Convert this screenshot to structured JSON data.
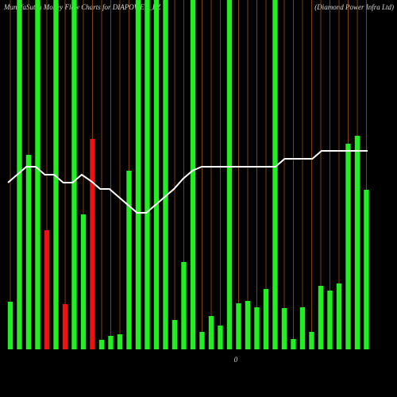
{
  "chart_data": {
    "type": "bar",
    "title": "MunafaSutra Money Flow Charts for DIAPOWER_BZ",
    "subtitle": "(Diamond Power Infra Ltd)",
    "xlabel": "0",
    "ylim": [
      0,
      440
    ],
    "categories": [
      null,
      null,
      null,
      null,
      null,
      null,
      null,
      null,
      null,
      null,
      null,
      null,
      null,
      null,
      null,
      null,
      null,
      null,
      null,
      null,
      null,
      null,
      null,
      null,
      null,
      null,
      null,
      null,
      null,
      null,
      null,
      null,
      null,
      null,
      null,
      null,
      null,
      null,
      null,
      null
    ],
    "bars": {
      "values": [
        60,
        440,
        245,
        440,
        150,
        440,
        57,
        440,
        170,
        265,
        12,
        17,
        19,
        225,
        440,
        440,
        440,
        440,
        37,
        110,
        440,
        22,
        42,
        30,
        440,
        58,
        61,
        53,
        76,
        440,
        52,
        13,
        53,
        22,
        80,
        74,
        83,
        259,
        269,
        201
      ],
      "colors": [
        "#22ee22",
        "#22ee22",
        "#22ee22",
        "#22ee22",
        "#ee1111",
        "#22ee22",
        "#ee1111",
        "#22ee22",
        "#22ee22",
        "#ee1111",
        "#22ee22",
        "#22ee22",
        "#22ee22",
        "#22ee22",
        "#22ee22",
        "#22ee22",
        "#22ee22",
        "#22ee22",
        "#22ee22",
        "#22ee22",
        "#22ee22",
        "#22ee22",
        "#22ee22",
        "#22ee22",
        "#22ee22",
        "#22ee22",
        "#22ee22",
        "#22ee22",
        "#22ee22",
        "#22ee22",
        "#22ee22",
        "#22ee22",
        "#22ee22",
        "#22ee22",
        "#22ee22",
        "#22ee22",
        "#22ee22",
        "#22ee22",
        "#22ee22",
        "#22ee22"
      ]
    },
    "line": {
      "color": "#ffffff",
      "values": [
        210,
        220,
        230,
        230,
        220,
        220,
        210,
        210,
        220,
        212,
        202,
        202,
        192,
        182,
        172,
        172,
        182,
        192,
        202,
        215,
        225,
        230,
        230,
        230,
        230,
        230,
        230,
        230,
        230,
        230,
        240,
        240,
        240,
        240,
        250,
        250,
        250,
        250,
        250,
        250
      ]
    }
  }
}
